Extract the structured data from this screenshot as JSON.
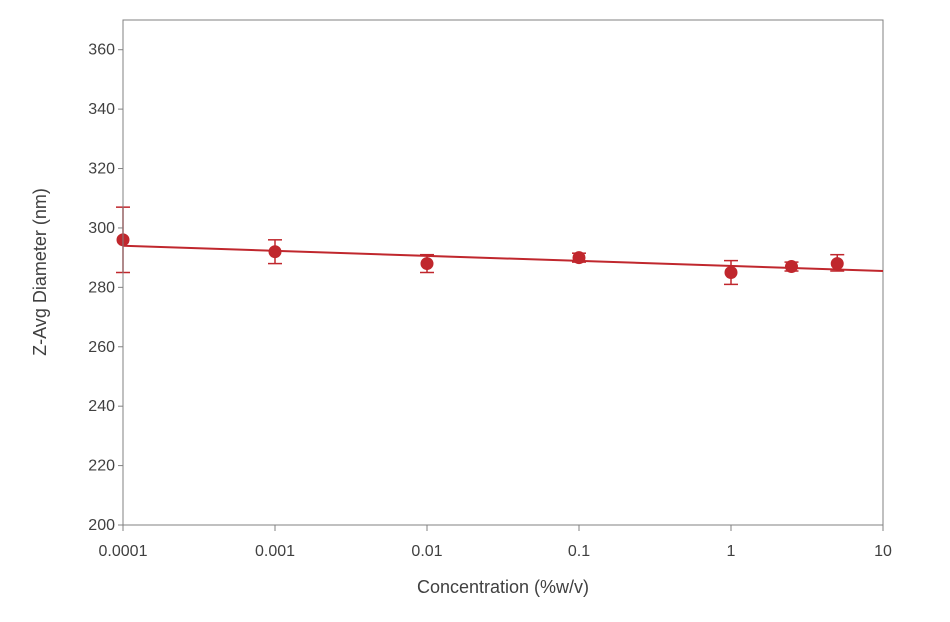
{
  "chart_data": {
    "type": "scatter",
    "title": "",
    "xlabel": "Concentration (%w/v)",
    "ylabel": "Z-Avg Diameter (nm)",
    "x_scale": "log",
    "xlim": [
      0.0001,
      10
    ],
    "ylim": [
      200,
      370
    ],
    "x_ticks": [
      0.0001,
      0.001,
      0.01,
      0.1,
      1,
      10
    ],
    "x_tick_labels": [
      "0.0001",
      "0.001",
      "0.01",
      "0.1",
      "1",
      "10"
    ],
    "y_ticks": [
      200,
      220,
      240,
      260,
      280,
      300,
      320,
      340,
      360
    ],
    "y_tick_labels": [
      "200",
      "220",
      "240",
      "260",
      "280",
      "300",
      "320",
      "340",
      "360"
    ],
    "grid": false,
    "legend": "none",
    "series": [
      {
        "color": "#c0272d",
        "points": [
          {
            "x": 0.0001,
            "y": 296,
            "err_low": 285,
            "err_high": 307
          },
          {
            "x": 0.001,
            "y": 292,
            "err_low": 288,
            "err_high": 296
          },
          {
            "x": 0.01,
            "y": 288,
            "err_low": 285,
            "err_high": 291
          },
          {
            "x": 0.1,
            "y": 290,
            "err_low": 288.5,
            "err_high": 291.5
          },
          {
            "x": 1,
            "y": 285,
            "err_low": 281,
            "err_high": 289
          },
          {
            "x": 2.5,
            "y": 287,
            "err_low": 285.5,
            "err_high": 288.5
          },
          {
            "x": 5,
            "y": 288,
            "err_low": 285.5,
            "err_high": 291
          }
        ],
        "trendline": {
          "x": [
            0.0001,
            10
          ],
          "y": [
            294,
            285.5
          ]
        }
      }
    ]
  }
}
